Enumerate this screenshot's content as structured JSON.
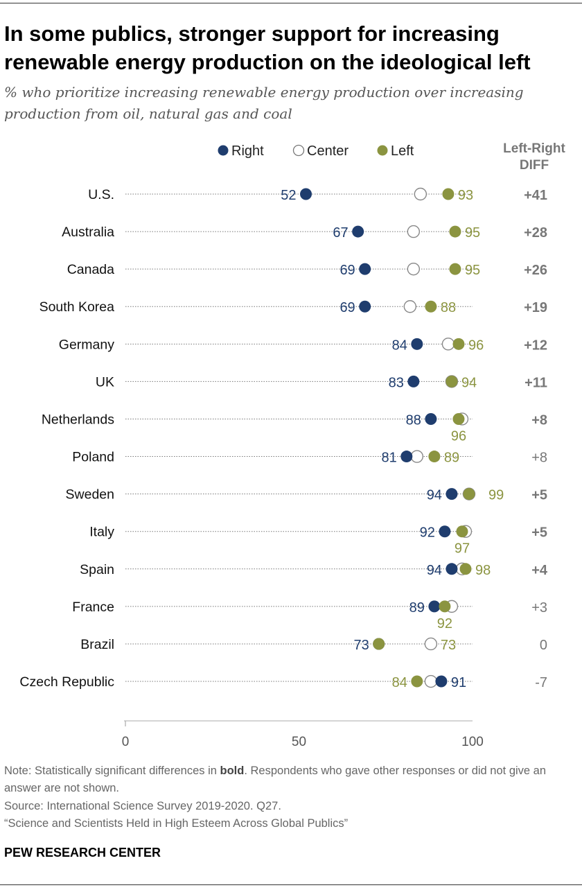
{
  "title": "In some publics, stronger support for increasing renewable energy production on the ideological left",
  "subtitle": "% who prioritize increasing renewable energy production over increasing production from oil, natural gas and coal",
  "chart_data": {
    "type": "dot",
    "xlim": [
      0,
      100
    ],
    "xticks": [
      "0",
      "50",
      "100"
    ],
    "legend": [
      "Right",
      "Center",
      "Left"
    ],
    "legend_placement": "top",
    "diff_header": [
      "Left-Right",
      "DIFF"
    ],
    "colors": {
      "Right": "#1f3d6e",
      "Center": "#ffffff",
      "Left": "#8b9440",
      "diff": "#777777"
    },
    "rows": [
      {
        "country": "U.S.",
        "right": 52,
        "center": 85,
        "left": 93,
        "diff": "+41",
        "significant": true
      },
      {
        "country": "Australia",
        "right": 67,
        "center": 83,
        "left": 95,
        "diff": "+28",
        "significant": true
      },
      {
        "country": "Canada",
        "right": 69,
        "center": 83,
        "left": 95,
        "diff": "+26",
        "significant": true
      },
      {
        "country": "South Korea",
        "right": 69,
        "center": 82,
        "left": 88,
        "diff": "+19",
        "significant": true
      },
      {
        "country": "Germany",
        "right": 84,
        "center": 93,
        "left": 96,
        "diff": "+12",
        "significant": true
      },
      {
        "country": "UK",
        "right": 83,
        "center": 94,
        "left": 94,
        "diff": "+11",
        "significant": true
      },
      {
        "country": "Netherlands",
        "right": 88,
        "center": 97,
        "left": 96,
        "diff": "+8",
        "significant": true
      },
      {
        "country": "Poland",
        "right": 81,
        "center": 84,
        "left": 89,
        "diff": "+8",
        "significant": false
      },
      {
        "country": "Sweden",
        "right": 94,
        "center": 99,
        "left": 99,
        "diff": "+5",
        "significant": true
      },
      {
        "country": "Italy",
        "right": 92,
        "center": 98,
        "left": 97,
        "diff": "+5",
        "significant": true
      },
      {
        "country": "Spain",
        "right": 94,
        "center": 97,
        "left": 98,
        "diff": "+4",
        "significant": true
      },
      {
        "country": "France",
        "right": 89,
        "center": 94,
        "left": 92,
        "diff": "+3",
        "significant": false
      },
      {
        "country": "Brazil",
        "right": 73,
        "center": 88,
        "left": 73,
        "diff": "0",
        "significant": false
      },
      {
        "country": "Czech Republic",
        "right": 91,
        "center": 88,
        "left": 84,
        "diff": "-7",
        "significant": false
      }
    ]
  },
  "notes": {
    "note_prefix": "Note: Statistically significant differences in ",
    "note_bold": "bold",
    "note_suffix": ". Respondents who gave other responses or did not give an answer are not shown.",
    "source": "Source: International Science Survey 2019-2020. Q27.",
    "report": "“Science and Scientists Held in High Esteem Across Global Publics”"
  },
  "brand": "PEW RESEARCH CENTER"
}
